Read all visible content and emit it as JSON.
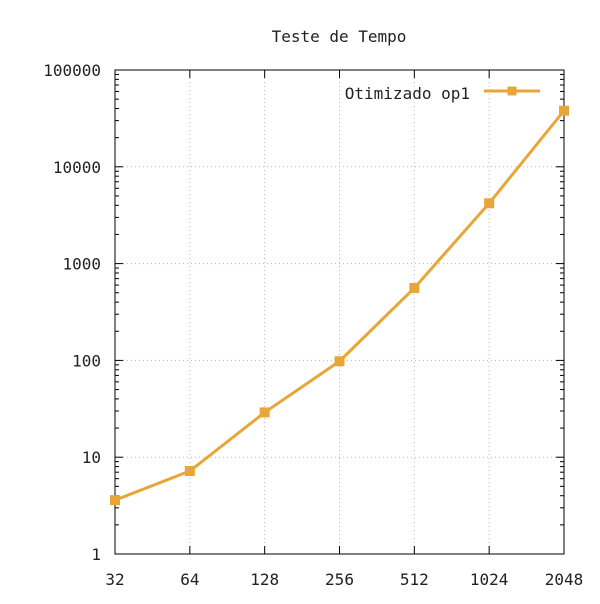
{
  "chart_data": {
    "type": "line",
    "title": "Teste de Tempo",
    "xlabel": "",
    "ylabel": "",
    "x_scale": "log2",
    "y_scale": "log10",
    "categories": [
      "32",
      "64",
      "128",
      "256",
      "512",
      "1024",
      "2048"
    ],
    "x": [
      32,
      64,
      128,
      256,
      512,
      1024,
      2048
    ],
    "xlim": [
      32,
      2048
    ],
    "ylim": [
      1,
      100000
    ],
    "yticks": [
      1,
      10,
      100,
      1000,
      10000,
      100000
    ],
    "ytick_labels": [
      "1",
      "10",
      "100",
      "1000",
      "10000",
      "100000"
    ],
    "grid": true,
    "legend_position": "top-right",
    "series": [
      {
        "name": "Otimizado op1",
        "color": "#e8a638",
        "marker": "square",
        "values": [
          3.6,
          7.2,
          29,
          98,
          560,
          4200,
          38000
        ]
      }
    ]
  }
}
